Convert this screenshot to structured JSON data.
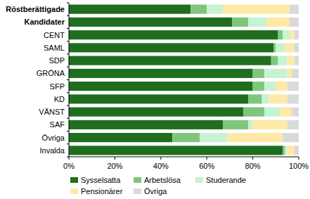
{
  "chart_data": {
    "type": "bar",
    "orientation": "horizontal",
    "stacked": true,
    "categories": [
      "Röstberättigade",
      "Kandidater",
      "CENT",
      "SAML",
      "SDP",
      "GRÖNA",
      "SFP",
      "KD",
      "VÄNST",
      "SAF",
      "Övriga",
      "Invalda"
    ],
    "series": [
      {
        "name": "Sysselsatta",
        "color": "#1f6e1f",
        "values": [
          53,
          71,
          91,
          89,
          88,
          80,
          80,
          78,
          76,
          67,
          45,
          93
        ]
      },
      {
        "name": "Arbetslösa",
        "color": "#80c57e",
        "values": [
          7,
          7,
          2,
          1,
          3,
          5,
          5,
          6,
          9,
          11,
          12,
          1
        ]
      },
      {
        "name": "Studerande",
        "color": "#c6f3d2",
        "values": [
          7,
          8,
          3,
          4,
          4,
          10,
          5,
          3,
          7,
          2,
          12,
          1
        ]
      },
      {
        "name": "Pensionärer",
        "color": "#ffe9a6",
        "values": [
          29,
          10,
          2,
          4,
          3,
          2,
          5,
          8,
          5,
          15,
          24,
          3
        ]
      },
      {
        "name": "Övriga",
        "color": "#dadada",
        "values": [
          4,
          4,
          2,
          2,
          2,
          3,
          5,
          5,
          3,
          5,
          7,
          2
        ]
      }
    ],
    "xlim": [
      0,
      100
    ],
    "xticks": [
      {
        "value": 0,
        "label": "0%"
      },
      {
        "value": 20,
        "label": "20%"
      },
      {
        "value": 40,
        "label": "40%"
      },
      {
        "value": 60,
        "label": "60%"
      },
      {
        "value": 80,
        "label": "80%"
      },
      {
        "value": 100,
        "label": "100%"
      }
    ],
    "grid": false,
    "legend": "bottom"
  }
}
